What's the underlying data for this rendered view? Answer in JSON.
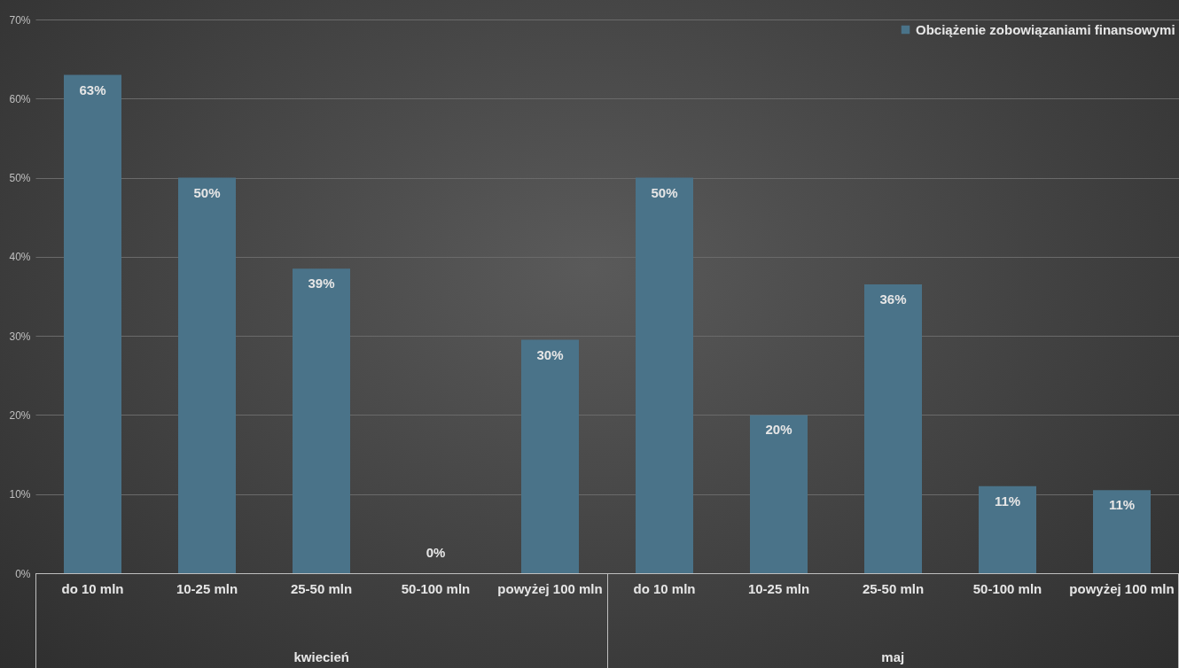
{
  "chart_data": {
    "type": "bar",
    "categories": [
      "do 10 mln",
      "10-25 mln",
      "25-50 mln",
      "50-100 mln",
      "powyżej 100 mln",
      "do 10 mln",
      "10-25 mln",
      "25-50 mln",
      "50-100 mln",
      "powyżej 100 mln"
    ],
    "series": [
      {
        "name": "Obciążenie zobowiązaniami finansowymi",
        "color": "#4a7389",
        "values": [
          63,
          50,
          38.5,
          0,
          29.5,
          50,
          20,
          36.5,
          11,
          10.5
        ],
        "value_labels": [
          "63%",
          "50%",
          "39%",
          "0%",
          "30%",
          "50%",
          "20%",
          "36%",
          "11%",
          "11%"
        ]
      }
    ],
    "ylim": [
      0,
      70
    ],
    "yticks": [
      {
        "value": 0,
        "label": "0%"
      },
      {
        "value": 10,
        "label": "10%"
      },
      {
        "value": 20,
        "label": "20%"
      },
      {
        "value": 30,
        "label": "30%"
      },
      {
        "value": 40,
        "label": "40%"
      },
      {
        "value": 50,
        "label": "50%"
      },
      {
        "value": 60,
        "label": "60%"
      },
      {
        "value": 70,
        "label": "70%"
      }
    ],
    "grid": "y",
    "legend": "top right",
    "annotations": [
      "kwiecień",
      "maj"
    ]
  }
}
